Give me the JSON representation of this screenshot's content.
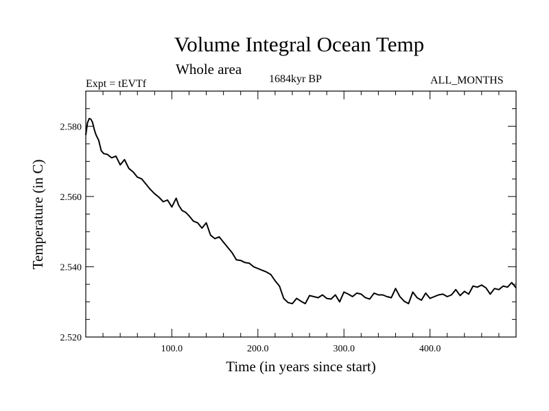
{
  "chart_data": {
    "type": "line",
    "title": "Volume Integral Ocean Temp",
    "subtitle": "Whole area",
    "left_annotation": "Expt = tEVTf",
    "center_annotation": "1684kyr BP",
    "right_annotation": "ALL_MONTHS",
    "xlabel": "Time (in years since start)",
    "ylabel": "Temperature (in C)",
    "xlim": [
      0,
      500
    ],
    "ylim": [
      2.52,
      2.59
    ],
    "xticks_labeled": [
      {
        "value": 100,
        "label": "100.0"
      },
      {
        "value": 200,
        "label": "200.0"
      },
      {
        "value": 300,
        "label": "300.0"
      },
      {
        "value": 400,
        "label": "400.0"
      }
    ],
    "yticks_labeled": [
      {
        "value": 2.52,
        "label": "2.520"
      },
      {
        "value": 2.54,
        "label": "2.540"
      },
      {
        "value": 2.56,
        "label": "2.560"
      },
      {
        "value": 2.58,
        "label": "2.580"
      }
    ],
    "x_minor_step": 20,
    "y_minor_step": 0.005,
    "grid": false,
    "series": [
      {
        "name": "Volume integral ocean temperature",
        "x": [
          0,
          2,
          4,
          6,
          8,
          10,
          12,
          15,
          18,
          21,
          25,
          30,
          35,
          40,
          45,
          50,
          55,
          60,
          65,
          70,
          75,
          80,
          85,
          90,
          95,
          100,
          105,
          108,
          112,
          116,
          120,
          125,
          130,
          135,
          140,
          145,
          150,
          155,
          160,
          165,
          170,
          175,
          180,
          185,
          190,
          195,
          200,
          205,
          210,
          215,
          220,
          225,
          230,
          235,
          240,
          245,
          250,
          255,
          260,
          265,
          270,
          275,
          280,
          285,
          290,
          295,
          300,
          305,
          310,
          315,
          320,
          325,
          330,
          335,
          340,
          345,
          350,
          355,
          360,
          365,
          370,
          375,
          380,
          385,
          390,
          395,
          400,
          405,
          410,
          415,
          420,
          425,
          430,
          435,
          440,
          445,
          450,
          455,
          460,
          465,
          470,
          475,
          480,
          485,
          490,
          495,
          500
        ],
        "y": [
          2.5775,
          2.581,
          2.5822,
          2.582,
          2.581,
          2.579,
          2.5775,
          2.576,
          2.573,
          2.5722,
          2.572,
          2.571,
          2.5715,
          2.569,
          2.5705,
          2.568,
          2.567,
          2.5655,
          2.565,
          2.5635,
          2.562,
          2.5608,
          2.5598,
          2.5585,
          2.559,
          2.557,
          2.5595,
          2.5575,
          2.556,
          2.5555,
          2.5545,
          2.553,
          2.5525,
          2.551,
          2.5525,
          2.549,
          2.548,
          2.5485,
          2.547,
          2.5455,
          2.544,
          2.542,
          2.5418,
          2.5412,
          2.541,
          2.54,
          2.5395,
          2.539,
          2.5385,
          2.5378,
          2.536,
          2.5345,
          2.531,
          2.5298,
          2.5295,
          2.531,
          2.5302,
          2.5295,
          2.5318,
          2.5315,
          2.5312,
          2.532,
          2.531,
          2.5308,
          2.532,
          2.53,
          2.5328,
          2.5322,
          2.5315,
          2.5325,
          2.5322,
          2.5312,
          2.5308,
          2.5325,
          2.532,
          2.532,
          2.5315,
          2.5312,
          2.5338,
          2.5315,
          2.5302,
          2.5295,
          2.5328,
          2.5312,
          2.5305,
          2.5325,
          2.531,
          2.5315,
          2.532,
          2.5322,
          2.5315,
          2.532,
          2.5335,
          2.5318,
          2.533,
          2.5322,
          2.5345,
          2.5342,
          2.5348,
          2.534,
          2.5322,
          2.5338,
          2.5335,
          2.5345,
          2.5342,
          2.5355,
          2.534
        ]
      }
    ]
  }
}
